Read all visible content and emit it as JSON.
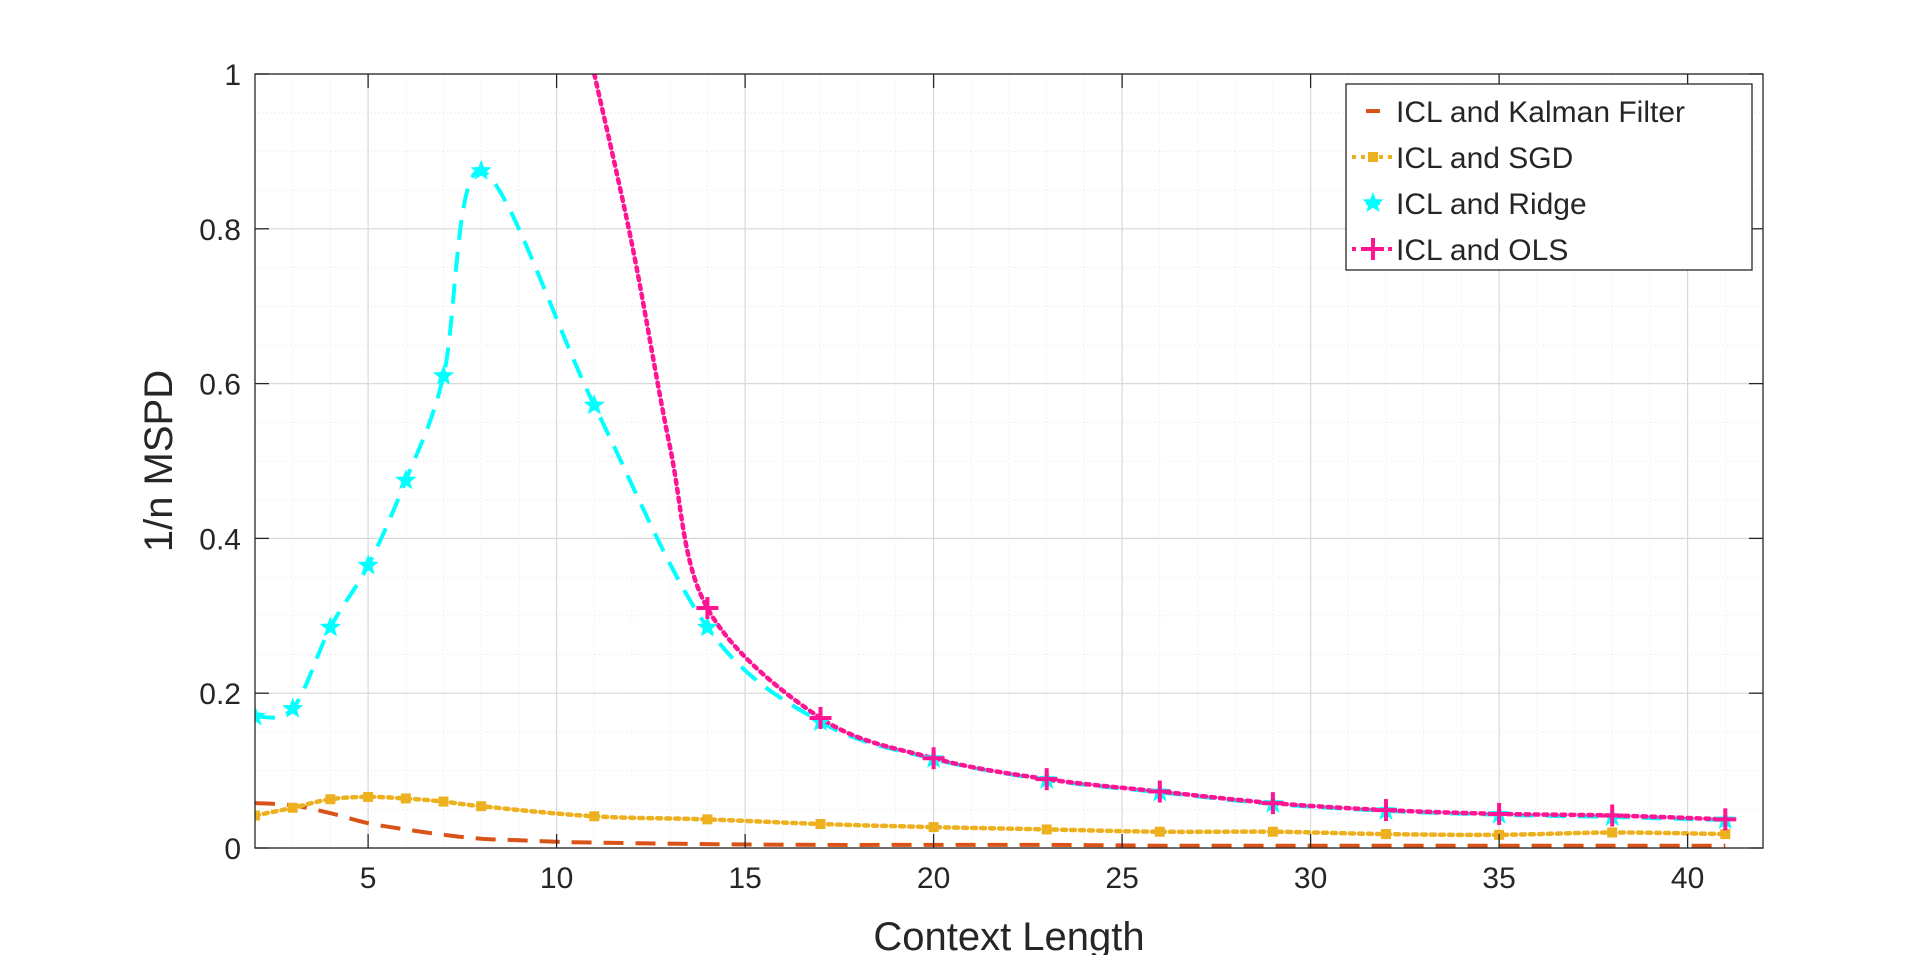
{
  "chart_data": {
    "type": "line",
    "xlabel": "Context Length",
    "ylabel": "1/n MSPD",
    "xlim": [
      2,
      42
    ],
    "ylim": [
      0,
      1
    ],
    "x_ticks": [
      5,
      10,
      15,
      20,
      25,
      30,
      35,
      40
    ],
    "x_tick_labels": [
      "5",
      "10",
      "15",
      "20",
      "25",
      "30",
      "35",
      "40"
    ],
    "y_ticks": [
      0,
      0.2,
      0.4,
      0.6,
      0.8,
      1
    ],
    "y_tick_labels": [
      "0",
      "0.2",
      "0.4",
      "0.6",
      "0.8",
      "1"
    ],
    "grid": true,
    "minor_grid": true,
    "legend_position": "top-right",
    "series": [
      {
        "name": "ICL and Kalman Filter",
        "color": "#D95319",
        "line_style": "dashed",
        "marker": "none",
        "x": [
          2,
          3,
          4,
          5,
          6,
          7,
          8,
          9,
          10,
          11,
          14,
          17,
          20,
          23,
          26,
          29,
          32,
          35,
          38,
          41
        ],
        "y": [
          0.058,
          0.055,
          0.045,
          0.032,
          0.024,
          0.017,
          0.012,
          0.01,
          0.008,
          0.007,
          0.005,
          0.004,
          0.004,
          0.004,
          0.003,
          0.003,
          0.003,
          0.003,
          0.003,
          0.003
        ]
      },
      {
        "name": "ICL and SGD",
        "color": "#EDB120",
        "line_style": "dotted",
        "marker": "square",
        "x": [
          2,
          3,
          4,
          5,
          6,
          7,
          8,
          11,
          14,
          17,
          20,
          23,
          26,
          29,
          32,
          35,
          38,
          41
        ],
        "y": [
          0.042,
          0.052,
          0.063,
          0.066,
          0.064,
          0.06,
          0.054,
          0.041,
          0.037,
          0.031,
          0.027,
          0.024,
          0.021,
          0.021,
          0.018,
          0.017,
          0.02,
          0.018
        ]
      },
      {
        "name": "ICL and Ridge",
        "color": "#00FFFF",
        "line_style": "dashed",
        "marker": "star",
        "x": [
          2,
          3,
          4,
          5,
          6,
          7,
          8,
          11,
          14,
          17,
          20,
          23,
          26,
          29,
          32,
          35,
          38,
          41
        ],
        "y": [
          0.17,
          0.18,
          0.285,
          0.365,
          0.475,
          0.61,
          0.875,
          0.572,
          0.285,
          0.163,
          0.115,
          0.088,
          0.072,
          0.057,
          0.048,
          0.043,
          0.04,
          0.036
        ]
      },
      {
        "name": "ICL and OLS",
        "color": "#FF1493",
        "line_style": "dotted",
        "marker": "plus",
        "curve_x": [
          11,
          12,
          13,
          14
        ],
        "curve_y": [
          1.0,
          0.78,
          0.52,
          0.31
        ],
        "x": [
          14,
          17,
          20,
          23,
          26,
          29,
          32,
          35,
          38,
          41
        ],
        "y": [
          0.31,
          0.168,
          0.116,
          0.089,
          0.073,
          0.058,
          0.049,
          0.044,
          0.042,
          0.037
        ]
      }
    ]
  }
}
